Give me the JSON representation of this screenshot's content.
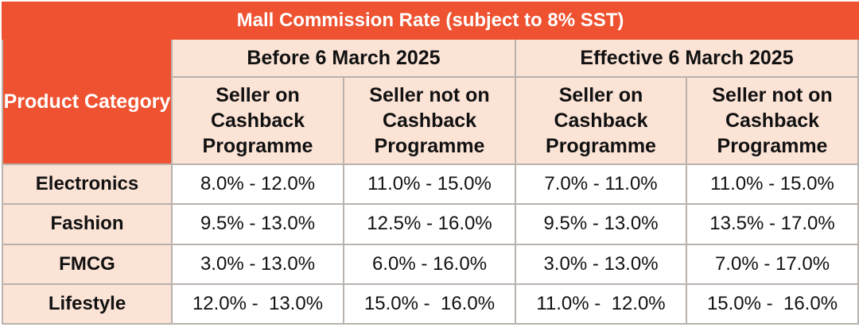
{
  "title": "Mall Commission Rate (subject to 8% SST)",
  "category_header": "Product Category",
  "periods": [
    "Before 6 March 2025",
    "Effective 6 March 2025"
  ],
  "sub_headers": [
    "Seller on Cashback Programme",
    "Seller not on Cashback Programme",
    "Seller on Cashback Programme",
    "Seller not on Cashback Programme"
  ],
  "rows": [
    {
      "category": "Electronics",
      "values": [
        "8.0% - 12.0%",
        "11.0% - 15.0%",
        "7.0% - 11.0%",
        "11.0% - 15.0%"
      ]
    },
    {
      "category": "Fashion",
      "values": [
        "9.5% - 13.0%",
        "12.5% - 16.0%",
        "9.5% - 13.0%",
        "13.5% - 17.0%"
      ]
    },
    {
      "category": "FMCG",
      "values": [
        "3.0% - 13.0%",
        "6.0% - 16.0%",
        "3.0% - 13.0%",
        "7.0% - 17.0%"
      ]
    },
    {
      "category": "Lifestyle",
      "values": [
        "12.0% -  13.0%",
        "15.0% -  16.0%",
        "11.0% -  12.0%",
        "15.0% -  16.0%"
      ]
    }
  ],
  "colors": {
    "accent": "#ee5230",
    "header_fill": "#fbe3d6",
    "border": "#b9b2ad"
  }
}
